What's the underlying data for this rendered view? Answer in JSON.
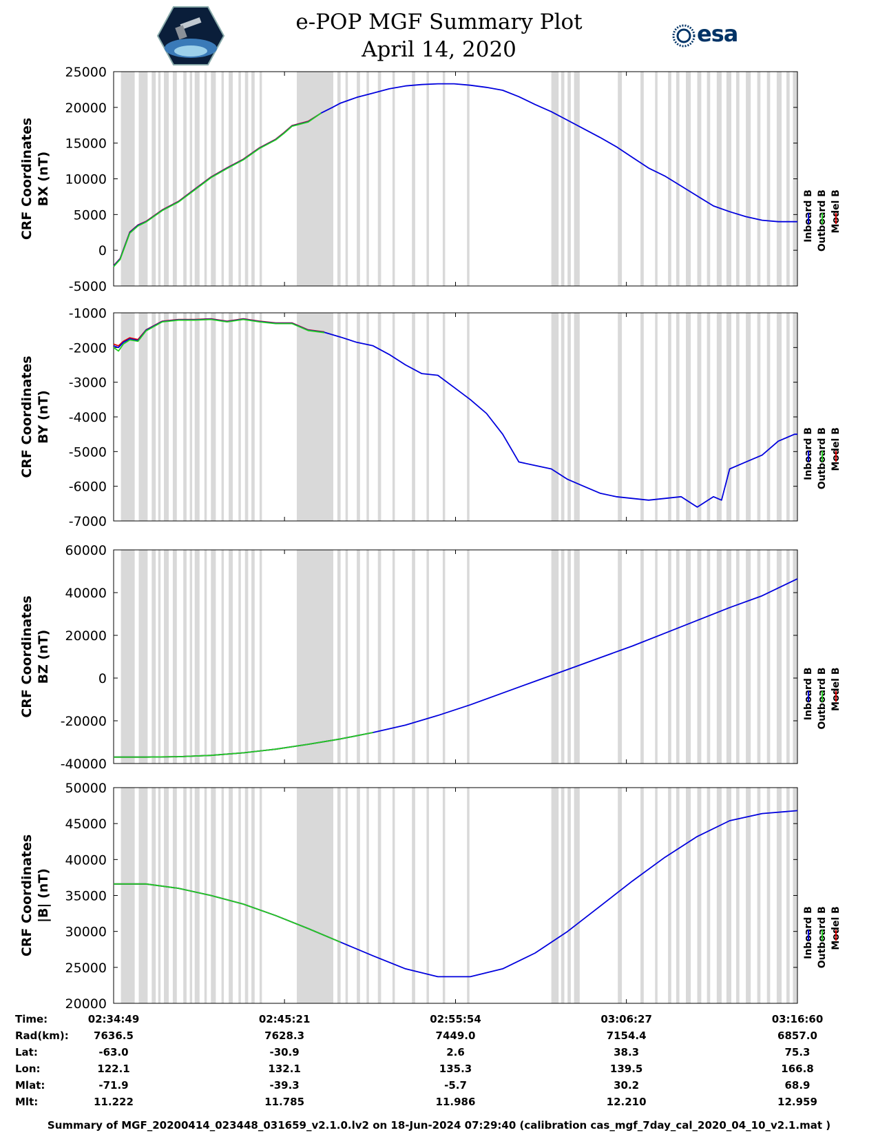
{
  "header": {
    "title": "e-POP MGF Summary Plot",
    "date": "April 14, 2020",
    "logo_left": "CASSIOPE mission logo",
    "logo_right_text": "esa"
  },
  "legend": {
    "labels": [
      "Inboard B",
      "Outboard B",
      "Model B"
    ],
    "colors": [
      "#0000dd",
      "#22cc22",
      "#dd0000"
    ]
  },
  "info_table": {
    "labels": [
      "Time:",
      "Rad(km):",
      "Lat:",
      "Lon:",
      "Mlat:",
      "Mlt:"
    ],
    "columns": [
      [
        "02:34:49",
        "7636.5",
        "-63.0",
        "122.1",
        "-71.9",
        "11.222"
      ],
      [
        "02:45:21",
        "7628.3",
        "-30.9",
        "132.1",
        "-39.3",
        "11.785"
      ],
      [
        "02:55:54",
        "7449.0",
        "2.6",
        "135.3",
        "-5.7",
        "11.986"
      ],
      [
        "03:06:27",
        "7154.4",
        "38.3",
        "139.5",
        "30.2",
        "12.210"
      ],
      [
        "03:16:60",
        "6857.0",
        "75.3",
        "166.8",
        "68.9",
        "12.959"
      ]
    ]
  },
  "footer": "Summary of MGF_20200414_023448_031659_v2.1.0.lv2 on 18-Jun-2024 07:29:40 (calibration cas_mgf_7day_cal_2020_04_10_v2.1.mat )",
  "chart_data": [
    {
      "type": "line",
      "ylabel": [
        "CRF Coordinates",
        "BX (nT)"
      ],
      "ylim": [
        -5000,
        25000
      ],
      "yticks": [
        -5000,
        0,
        5000,
        10000,
        15000,
        20000,
        25000
      ],
      "x_minutes": [
        0,
        0.4,
        1.0,
        1.5,
        2.0,
        3.0,
        4.0,
        5.0,
        6.0,
        7.0,
        8.0,
        9.0,
        10.0,
        10.5,
        11.0,
        12.0,
        12.8,
        13.5,
        14.0,
        15.0,
        16.0,
        17.0,
        18.0,
        19.0,
        20.0,
        21.0,
        22.0,
        23.0,
        24.0,
        25.0,
        26.0,
        27.0,
        28.0,
        29.0,
        30.0,
        31.0,
        32.0,
        33.0,
        34.0,
        35.0,
        36.0,
        37.0,
        38.0,
        39.0,
        40.0,
        41.0,
        42.0,
        42.18
      ],
      "series": [
        {
          "name": "Inboard B",
          "values": [
            -2200,
            -1200,
            2500,
            3500,
            4000,
            5600,
            6800,
            8500,
            10200,
            11500,
            12700,
            14300,
            15500,
            16400,
            17400,
            18000,
            19200,
            20000,
            20600,
            21400,
            22000,
            22600,
            23000,
            23200,
            23300,
            23300,
            23100,
            22800,
            22400,
            21500,
            20400,
            19400,
            18200,
            17000,
            15800,
            14500,
            13000,
            11500,
            10400,
            9000,
            7600,
            6200,
            5400,
            4700,
            4200,
            4000,
            4000,
            4000
          ]
        },
        {
          "name": "Outboard B",
          "values": [
            -2300,
            -1300,
            2400,
            3400,
            3950,
            5550,
            6750,
            8450,
            10150,
            11450,
            12650,
            14250,
            15450,
            16350,
            17350,
            17950,
            19200
          ]
        },
        {
          "name": "Model B",
          "values": [
            -2150,
            -1150,
            2550,
            3550,
            4050,
            5650,
            6850,
            8550,
            10250,
            11550,
            12750,
            14350,
            15550,
            16450,
            17450,
            18050,
            19200
          ]
        }
      ]
    },
    {
      "type": "line",
      "ylabel": [
        "CRF Coordinates",
        "BY (nT)"
      ],
      "ylim": [
        -7000,
        -1000
      ],
      "yticks": [
        -7000,
        -6000,
        -5000,
        -4000,
        -3000,
        -2000,
        -1000
      ],
      "x_minutes": [
        0,
        0.3,
        0.6,
        1.0,
        1.5,
        2.0,
        3.0,
        4.0,
        5.0,
        6.0,
        7.0,
        8.0,
        9.0,
        10.0,
        11.0,
        12.0,
        13.0,
        14.0,
        15.0,
        16.0,
        17.0,
        18.0,
        19.0,
        20.0,
        21.0,
        22.0,
        23.0,
        24.0,
        25.0,
        26.0,
        27.0,
        28.0,
        29.0,
        30.0,
        31.0,
        32.0,
        33.0,
        34.0,
        35.0,
        36.0,
        37.0,
        37.5,
        38.0,
        39.0,
        40.0,
        41.0,
        42.0,
        42.18
      ],
      "series": [
        {
          "name": "Inboard B",
          "values": [
            -1950,
            -2000,
            -1850,
            -1750,
            -1800,
            -1500,
            -1250,
            -1200,
            -1200,
            -1180,
            -1250,
            -1180,
            -1250,
            -1300,
            -1300,
            -1500,
            -1560,
            -1700,
            -1850,
            -1950,
            -2200,
            -2500,
            -2750,
            -2800,
            -3150,
            -3500,
            -3900,
            -4500,
            -5300,
            -5400,
            -5500,
            -5800,
            -6000,
            -6200,
            -6300,
            -6350,
            -6400,
            -6350,
            -6300,
            -6600,
            -6300,
            -6400,
            -5500,
            -5300,
            -5100,
            -4700,
            -4500,
            -4500
          ]
        },
        {
          "name": "Outboard B",
          "values": [
            -2000,
            -2100,
            -1900,
            -1780,
            -1820,
            -1520,
            -1260,
            -1210,
            -1210,
            -1190,
            -1260,
            -1190,
            -1260,
            -1310,
            -1310,
            -1510,
            -1570
          ]
        },
        {
          "name": "Model B",
          "values": [
            -1900,
            -1950,
            -1820,
            -1720,
            -1770,
            -1490,
            -1240,
            -1190,
            -1190,
            -1170,
            -1240,
            -1170,
            -1240,
            -1290,
            -1290,
            -1490,
            -1550
          ]
        }
      ]
    },
    {
      "type": "line",
      "ylabel": [
        "CRF Coordinates",
        "BZ (nT)"
      ],
      "ylim": [
        -40000,
        60000
      ],
      "yticks": [
        -40000,
        -20000,
        0,
        20000,
        40000,
        60000
      ],
      "x_minutes": [
        0,
        2,
        4,
        6,
        8,
        10,
        12,
        14,
        16,
        18,
        20,
        22,
        24,
        26,
        28,
        30,
        32,
        34,
        36,
        38,
        40,
        42.18
      ],
      "series": [
        {
          "name": "Inboard B",
          "values": [
            -37000,
            -37000,
            -36800,
            -36200,
            -35000,
            -33300,
            -31000,
            -28500,
            -25500,
            -22000,
            -17500,
            -12500,
            -7000,
            -1500,
            4000,
            9500,
            15000,
            21000,
            27000,
            33000,
            38500,
            46500
          ]
        },
        {
          "name": "Outboard B",
          "values": [
            -37000,
            -37000,
            -36800,
            -36200,
            -35000,
            -33300,
            -31000,
            -28500,
            -25500
          ]
        },
        {
          "name": "Model B",
          "values": [
            -37000,
            -37000,
            -36800,
            -36200,
            -35000,
            -33300,
            -31000,
            -28500,
            -25500
          ]
        }
      ]
    },
    {
      "type": "line",
      "ylabel": [
        "CRF Coordinates",
        "|B| (nT)"
      ],
      "ylim": [
        20000,
        50000
      ],
      "yticks": [
        20000,
        25000,
        30000,
        35000,
        40000,
        45000,
        50000
      ],
      "x_minutes": [
        0,
        2,
        4,
        6,
        8,
        10,
        12,
        14,
        16,
        18,
        20,
        22,
        24,
        26,
        28,
        30,
        32,
        34,
        36,
        38,
        40,
        42.18
      ],
      "series": [
        {
          "name": "Inboard B",
          "values": [
            36600,
            36600,
            36000,
            35000,
            33800,
            32200,
            30400,
            28500,
            26600,
            24800,
            23700,
            23700,
            24800,
            27000,
            30000,
            33500,
            37000,
            40300,
            43200,
            45400,
            46400,
            46800
          ]
        },
        {
          "name": "Outboard B",
          "values": [
            36600,
            36600,
            36000,
            35000,
            33800,
            32200,
            30400,
            28500
          ]
        },
        {
          "name": "Model B",
          "values": [
            36600,
            36600,
            36000,
            35000,
            33800,
            32200,
            30400,
            28500
          ]
        }
      ]
    }
  ],
  "shading": {
    "color": "#d9d9d9",
    "intervals_minutes": [
      [
        0.45,
        1.3
      ],
      [
        1.55,
        2.1
      ],
      [
        2.35,
        2.6
      ],
      [
        2.75,
        2.9
      ],
      [
        3.1,
        3.4
      ],
      [
        3.65,
        3.9
      ],
      [
        4.3,
        4.5
      ],
      [
        4.7,
        4.85
      ],
      [
        5.0,
        5.3
      ],
      [
        5.6,
        5.75
      ],
      [
        6.0,
        6.3
      ],
      [
        6.65,
        6.8
      ],
      [
        7.1,
        7.35
      ],
      [
        7.7,
        7.85
      ],
      [
        8.1,
        8.3
      ],
      [
        8.5,
        8.7
      ],
      [
        9.0,
        9.15
      ],
      [
        11.3,
        13.55
      ],
      [
        13.8,
        14.0
      ],
      [
        14.3,
        14.45
      ],
      [
        15.0,
        15.2
      ],
      [
        15.6,
        15.75
      ],
      [
        16.3,
        16.5
      ],
      [
        17.2,
        17.35
      ],
      [
        18.4,
        18.6
      ],
      [
        19.3,
        19.45
      ],
      [
        20.3,
        20.45
      ],
      [
        21.8,
        21.95
      ],
      [
        27.0,
        27.45
      ],
      [
        27.6,
        27.8
      ],
      [
        28.0,
        28.2
      ],
      [
        28.4,
        28.75
      ],
      [
        31.1,
        31.35
      ],
      [
        32.5,
        32.7
      ],
      [
        33.4,
        33.55
      ],
      [
        34.2,
        34.4
      ],
      [
        34.7,
        34.9
      ],
      [
        35.3,
        35.6
      ],
      [
        36.0,
        36.25
      ],
      [
        36.6,
        36.8
      ],
      [
        37.2,
        37.5
      ],
      [
        37.8,
        38.1
      ],
      [
        38.4,
        38.6
      ],
      [
        39.0,
        39.3
      ],
      [
        39.7,
        39.9
      ],
      [
        40.3,
        40.5
      ],
      [
        40.9,
        41.2
      ],
      [
        41.5,
        41.7
      ],
      [
        41.9,
        42.18
      ]
    ]
  },
  "x_axis": {
    "xlim_minutes": [
      0,
      42.18
    ],
    "major_ticks_minutes": [
      10.54,
      21.09,
      31.63
    ]
  }
}
